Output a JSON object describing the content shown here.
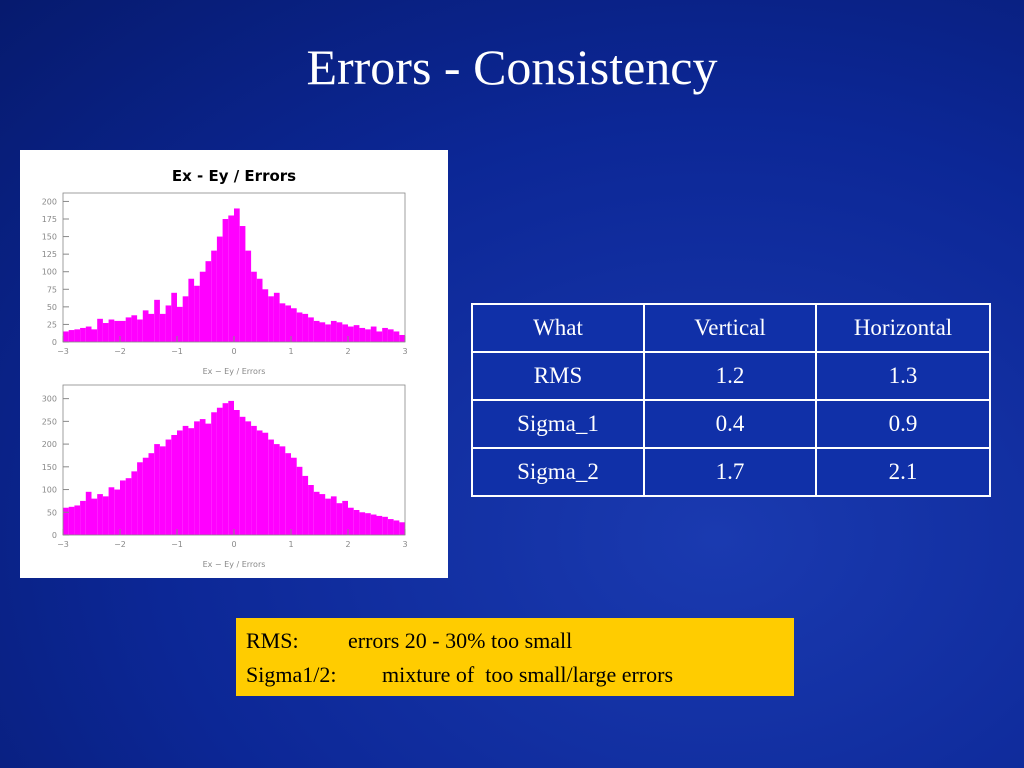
{
  "title": "Errors - Consistency",
  "chart_data": [
    {
      "type": "histogram",
      "title": "Ex - Ey / Errors",
      "x_label": "Ex − Ey / Errors",
      "color": "#ff00ff",
      "bins": [
        -3.0,
        -2.9,
        -2.8,
        -2.7,
        -2.6,
        -2.5,
        -2.4,
        -2.3,
        -2.2,
        -2.1,
        -2.0,
        -1.9,
        -1.8,
        -1.7,
        -1.6,
        -1.5,
        -1.4,
        -1.3,
        -1.2,
        -1.1,
        -1.0,
        -0.9,
        -0.8,
        -0.7,
        -0.6,
        -0.5,
        -0.4,
        -0.3,
        -0.2,
        -0.1,
        0.0,
        0.1,
        0.2,
        0.3,
        0.4,
        0.5,
        0.6,
        0.7,
        0.8,
        0.9,
        1.0,
        1.1,
        1.2,
        1.3,
        1.4,
        1.5,
        1.6,
        1.7,
        1.8,
        1.9,
        2.0,
        2.1,
        2.2,
        2.3,
        2.4,
        2.5,
        2.6,
        2.7,
        2.8,
        2.9,
        3.0
      ],
      "values": [
        15,
        17,
        18,
        20,
        22,
        18,
        33,
        27,
        32,
        30,
        30,
        35,
        38,
        32,
        45,
        40,
        60,
        40,
        52,
        70,
        50,
        65,
        90,
        80,
        100,
        115,
        130,
        150,
        175,
        180,
        190,
        165,
        130,
        100,
        90,
        75,
        65,
        70,
        55,
        52,
        48,
        42,
        40,
        35,
        30,
        28,
        25,
        30,
        28,
        25,
        22,
        24,
        20,
        18,
        22,
        15,
        20,
        18,
        15,
        10
      ],
      "xlim": [
        -3,
        3
      ],
      "ylim": [
        0,
        212
      ],
      "xticks": [
        {
          "value": -3,
          "label": "−3"
        },
        {
          "value": -2,
          "label": "−2"
        },
        {
          "value": -1,
          "label": "−1"
        },
        0,
        1,
        2,
        3
      ],
      "yticks": [
        0,
        25,
        50,
        75,
        100,
        125,
        150,
        175,
        200
      ]
    },
    {
      "type": "histogram",
      "x_label": "Ex − Ey / Errors",
      "color": "#ff00ff",
      "bins": [
        -3.0,
        -2.9,
        -2.8,
        -2.7,
        -2.6,
        -2.5,
        -2.4,
        -2.3,
        -2.2,
        -2.1,
        -2.0,
        -1.9,
        -1.8,
        -1.7,
        -1.6,
        -1.5,
        -1.4,
        -1.3,
        -1.2,
        -1.1,
        -1.0,
        -0.9,
        -0.8,
        -0.7,
        -0.6,
        -0.5,
        -0.4,
        -0.3,
        -0.2,
        -0.1,
        0.0,
        0.1,
        0.2,
        0.3,
        0.4,
        0.5,
        0.6,
        0.7,
        0.8,
        0.9,
        1.0,
        1.1,
        1.2,
        1.3,
        1.4,
        1.5,
        1.6,
        1.7,
        1.8,
        1.9,
        2.0,
        2.1,
        2.2,
        2.3,
        2.4,
        2.5,
        2.6,
        2.7,
        2.8,
        2.9,
        3.0
      ],
      "values": [
        60,
        62,
        65,
        75,
        95,
        80,
        90,
        85,
        105,
        100,
        120,
        125,
        140,
        160,
        170,
        180,
        200,
        195,
        210,
        220,
        230,
        240,
        235,
        250,
        255,
        245,
        270,
        280,
        290,
        295,
        275,
        260,
        250,
        240,
        230,
        225,
        210,
        200,
        195,
        180,
        170,
        150,
        130,
        110,
        95,
        90,
        80,
        85,
        70,
        75,
        60,
        55,
        50,
        48,
        45,
        42,
        40,
        35,
        32,
        28
      ],
      "xlim": [
        -3,
        3
      ],
      "ylim": [
        0,
        330
      ],
      "xticks": [
        {
          "value": -3,
          "label": "−3"
        },
        {
          "value": -2,
          "label": "−2"
        },
        {
          "value": -1,
          "label": "−1"
        },
        0,
        1,
        2,
        3
      ],
      "yticks": [
        0,
        50,
        100,
        150,
        200,
        250,
        300
      ]
    }
  ],
  "table": {
    "header": [
      "What",
      "Vertical",
      "Horizontal"
    ],
    "rows": [
      [
        "RMS",
        "1.2",
        "1.3"
      ],
      [
        "Sigma_1",
        "0.4",
        "0.9"
      ],
      [
        "Sigma_2",
        "1.7",
        "2.1"
      ]
    ]
  },
  "note": {
    "lines": [
      [
        "RMS:",
        "errors 20 - 30% too small"
      ],
      [
        "Sigma1/2:",
        "mixture of  too small/large errors"
      ]
    ]
  }
}
